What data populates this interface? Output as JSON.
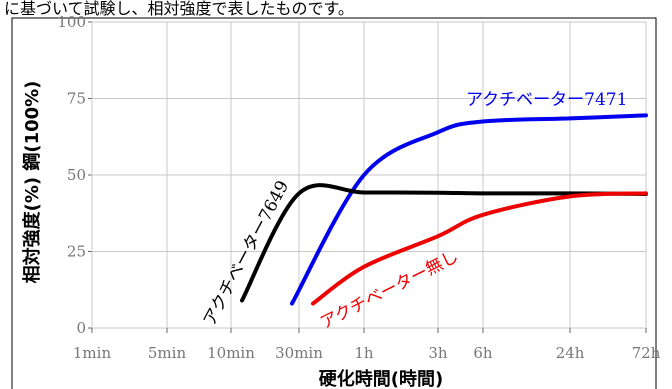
{
  "caption_top": "に基づいて試験し、相対強度で表したものです。",
  "chart_data": {
    "type": "line",
    "xlabel": "硬化時間(時間)",
    "ylabel": "相対強度(%) 鋼(100%)",
    "x_ticks": [
      "1min",
      "5min",
      "10min",
      "30min",
      "1h",
      "3h",
      "6h",
      "24h",
      "72h"
    ],
    "y_ticks": [
      0,
      25,
      50,
      75,
      100
    ],
    "ylim": [
      0,
      100
    ],
    "x_scale": "log",
    "grid": true,
    "series": [
      {
        "name": "アクチベーター7471",
        "color": "#0000ee",
        "points": [
          [
            "30min",
            8
          ],
          [
            "1h",
            50
          ],
          [
            "3h",
            64
          ],
          [
            "6h",
            67.5
          ],
          [
            "24h",
            68.5
          ],
          [
            "72h",
            69.5
          ]
        ]
      },
      {
        "name": "アクチベーター7649",
        "color": "#000000",
        "points": [
          [
            "10min",
            9
          ],
          [
            "30min",
            44
          ],
          [
            "1h",
            44.3
          ],
          [
            "3h",
            44.2
          ],
          [
            "6h",
            44
          ],
          [
            "24h",
            44
          ],
          [
            "72h",
            43.8
          ]
        ]
      },
      {
        "name": "アクチベーター無し",
        "color": "#ee0000",
        "points": [
          [
            "30min",
            8
          ],
          [
            "1h",
            20
          ],
          [
            "3h",
            30
          ],
          [
            "6h",
            37
          ],
          [
            "24h",
            43
          ],
          [
            "72h",
            44
          ]
        ]
      }
    ]
  }
}
